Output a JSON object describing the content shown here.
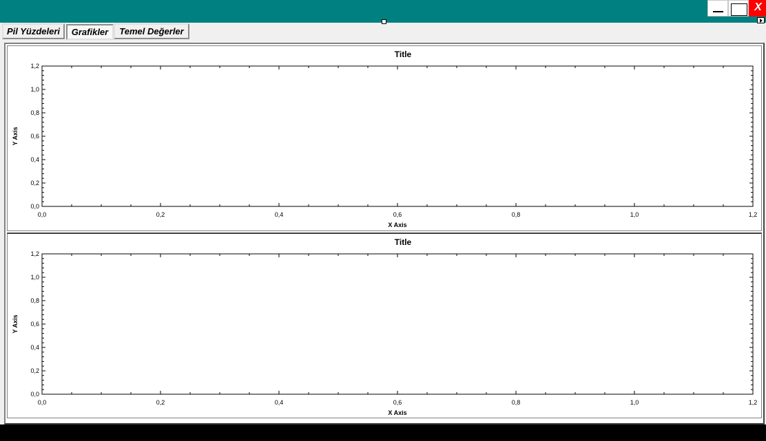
{
  "window": {
    "close_glyph": "X",
    "buttons": [
      "minimize-icon",
      "maximize-icon",
      "close-icon"
    ],
    "titlebar_color": "#008080",
    "close_color": "#ff0000"
  },
  "tabs": [
    {
      "label": "Pil Yüzdeleri",
      "active": false
    },
    {
      "label": "Grafikler",
      "active": true
    },
    {
      "label": "Temel Değerler",
      "active": false
    }
  ],
  "chart_data": [
    {
      "type": "line",
      "title": "Title",
      "xlabel": "X Axis",
      "ylabel": "Y Axis",
      "xlim": [
        0,
        1.2
      ],
      "ylim": [
        0,
        1.2
      ],
      "xticks": [
        "0,0",
        "0,2",
        "0,4",
        "0,6",
        "0,8",
        "1,0",
        "1,2"
      ],
      "yticks": [
        "0,0",
        "0,2",
        "0,4",
        "0,6",
        "0,8",
        "1,0",
        "1,2"
      ],
      "series": [],
      "grid": false
    },
    {
      "type": "line",
      "title": "Title",
      "xlabel": "X Axis",
      "ylabel": "Y Axis",
      "xlim": [
        0,
        1.2
      ],
      "ylim": [
        0,
        1.2
      ],
      "xticks": [
        "0,0",
        "0,2",
        "0,4",
        "0,6",
        "0,8",
        "1,0",
        "1,2"
      ],
      "yticks": [
        "0,0",
        "0,2",
        "0,4",
        "0,6",
        "0,8",
        "1,0",
        "1,2"
      ],
      "series": [],
      "grid": false
    }
  ]
}
